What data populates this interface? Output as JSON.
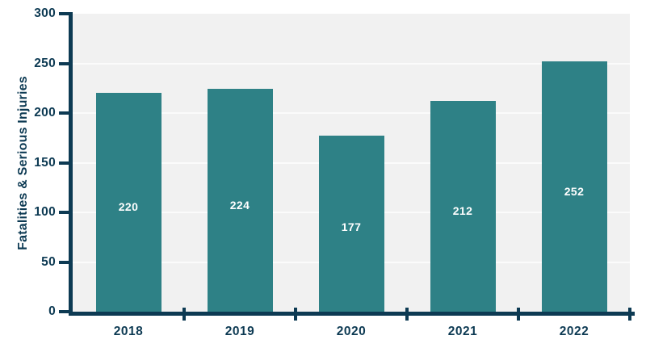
{
  "chart_data": {
    "type": "bar",
    "title": "",
    "categories": [
      "2018",
      "2019",
      "2020",
      "2021",
      "2022"
    ],
    "values": [
      220,
      224,
      177,
      212,
      252
    ],
    "bar_value_labels": [
      "220",
      "224",
      "177",
      "212",
      "252"
    ],
    "xlabel": "",
    "ylabel": "Fatalities & Serious Injuries",
    "ylim": [
      0,
      300
    ],
    "yticks": [
      0,
      50,
      100,
      150,
      200,
      250,
      300
    ],
    "ytick_labels": [
      "0",
      "50",
      "100",
      "150",
      "200",
      "250",
      "300"
    ],
    "grid": "horizontal-white",
    "legend": "none",
    "colors": {
      "bar": "#2e8186",
      "axis": "#0d3a53",
      "tick_label": "#0d3a53",
      "bar_label": "#ffffff",
      "plot_background": "#f1f1f1",
      "gridline": "#fbfbfb",
      "page_background": "#ffffff"
    }
  }
}
